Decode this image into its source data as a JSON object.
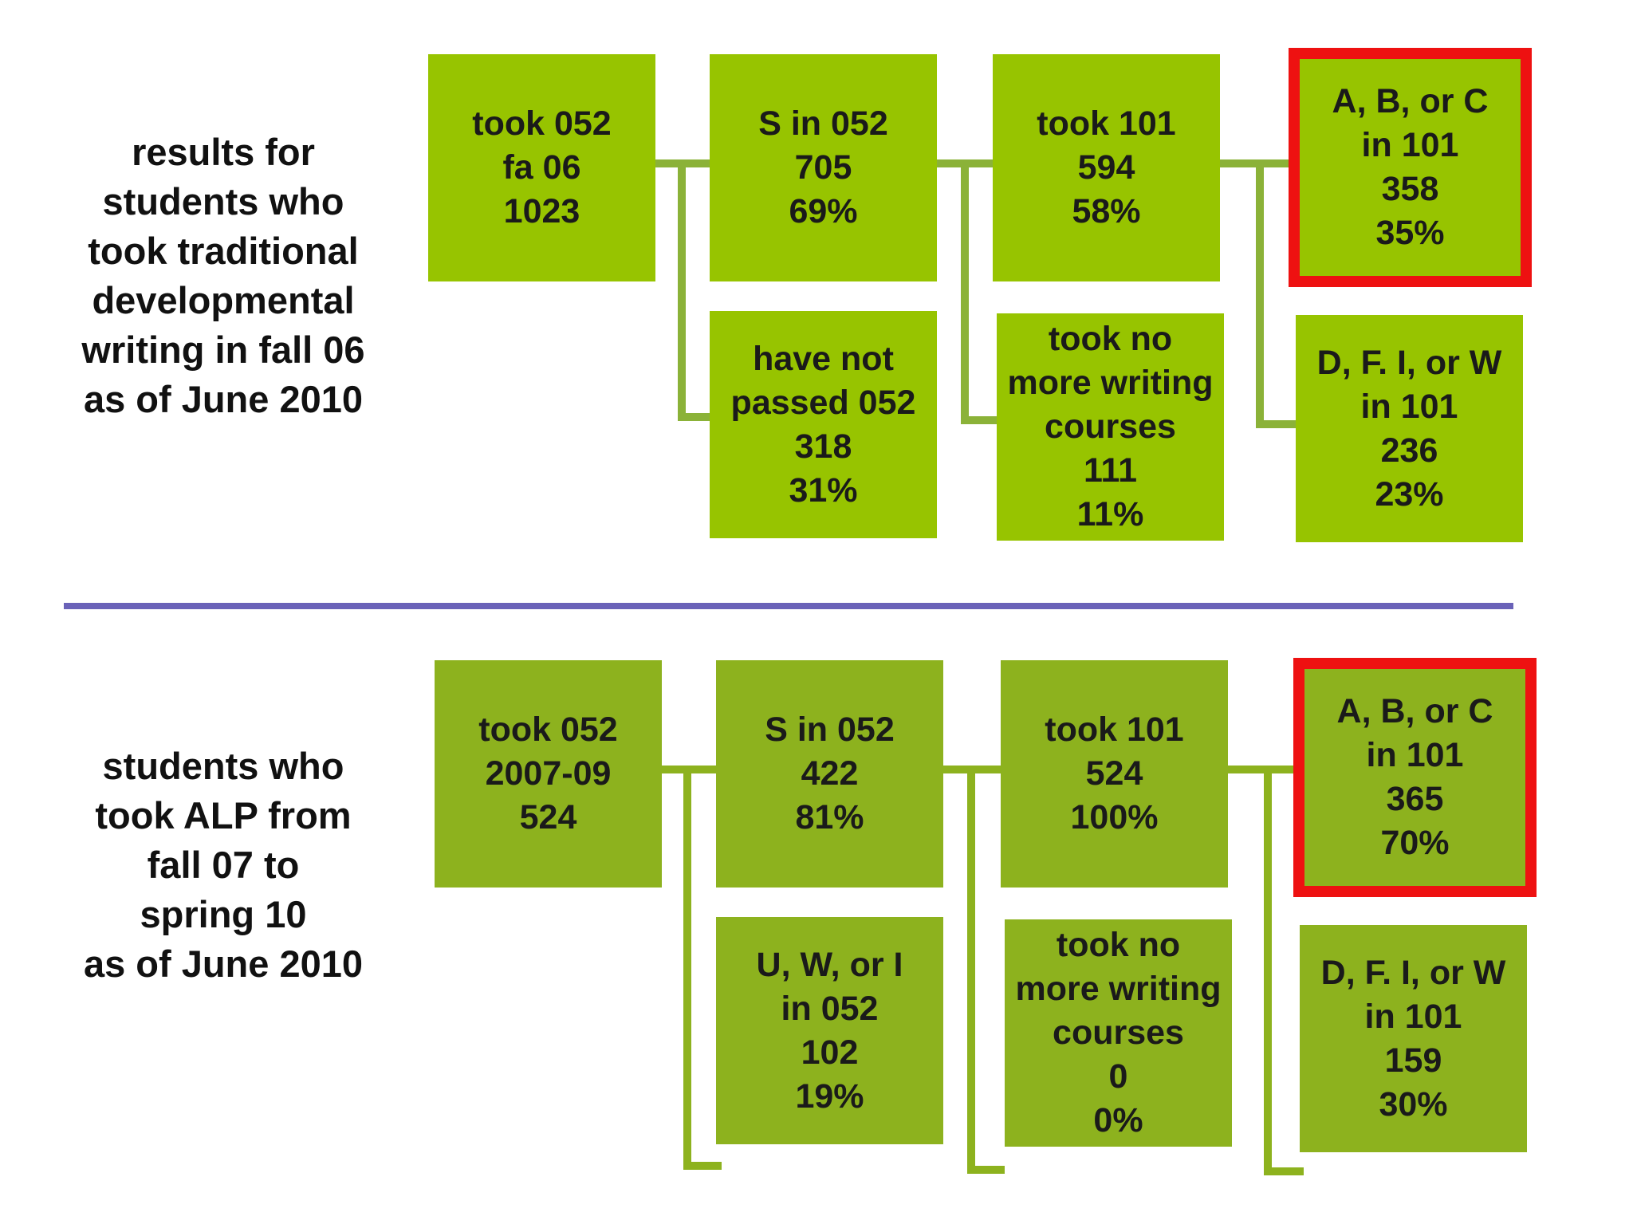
{
  "divider_color": "#6a62b8",
  "highlight_color": "#ee1111",
  "top": {
    "caption": "results for\nstudents who\ntook traditional\ndevelopmental\nwriting in fall 06\nas of June 2010",
    "box_color": "#97c400",
    "boxes": {
      "start": "took 052\nfa 06\n1023",
      "passed": "S in 052\n705\n69%",
      "not_passed": "have not\npassed 052\n318\n31%",
      "took_101": "took 101\n594\n58%",
      "no_more": "took no\nmore writing\ncourses\n111\n11%",
      "abc": "A, B, or C\nin 101\n358\n35%",
      "dfiw": "D, F. I, or W\nin 101\n236\n23%"
    }
  },
  "bottom": {
    "caption": "students who\ntook ALP from\nfall 07 to\nspring 10\nas of June 2010",
    "box_color": "#8db21e",
    "boxes": {
      "start": "took 052\n2007-09\n524",
      "passed": "S in 052\n422\n81%",
      "not_passed": "U, W, or I\nin 052\n102\n19%",
      "took_101": "took 101\n524\n100%",
      "no_more": "took no\nmore writing\ncourses\n0\n0%",
      "abc": "A, B, or C\nin 101\n365\n70%",
      "dfiw": "D, F. I, or W\nin 101\n159\n30%"
    }
  }
}
